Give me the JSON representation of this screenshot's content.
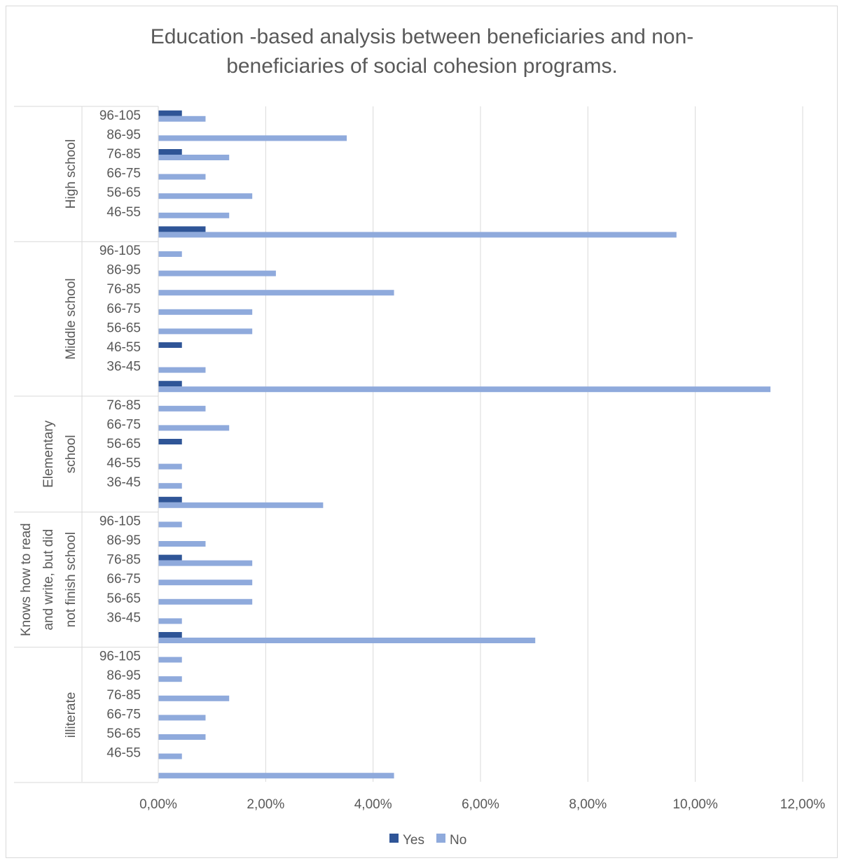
{
  "chart_data": {
    "type": "bar",
    "orientation": "horizontal",
    "title_lines": [
      "Education -based analysis between beneficiaries and non-",
      "beneficiaries of social cohesion programs."
    ],
    "xlim": [
      0,
      12
    ],
    "x_tick_labels": [
      "0,00%",
      "2,00%",
      "4,00%",
      "6,00%",
      "8,00%",
      "10,00%",
      "12,00%"
    ],
    "legend_position": "bottom",
    "colors": {
      "Yes": "#2f5597",
      "No": "#8faadc"
    },
    "series": [
      {
        "name": "Yes"
      },
      {
        "name": "No"
      }
    ],
    "groups": [
      {
        "label_lines": [
          "High school"
        ],
        "rows": [
          {
            "label": "96-105",
            "Yes": 0.44,
            "No": 0.88
          },
          {
            "label": "86-95",
            "Yes": 0,
            "No": 3.51
          },
          {
            "label": "76-85",
            "Yes": 0.44,
            "No": 1.32
          },
          {
            "label": "66-75",
            "Yes": 0,
            "No": 0.88
          },
          {
            "label": "56-65",
            "Yes": 0,
            "No": 1.75
          },
          {
            "label": "46-55",
            "Yes": 0,
            "No": 1.32
          },
          {
            "label": "",
            "Yes": 0.88,
            "No": 9.65
          }
        ]
      },
      {
        "label_lines": [
          "Middle school"
        ],
        "rows": [
          {
            "label": "96-105",
            "Yes": 0,
            "No": 0.44
          },
          {
            "label": "86-95",
            "Yes": 0,
            "No": 2.19
          },
          {
            "label": "76-85",
            "Yes": 0,
            "No": 4.39
          },
          {
            "label": "66-75",
            "Yes": 0,
            "No": 1.75
          },
          {
            "label": "56-65",
            "Yes": 0,
            "No": 1.75
          },
          {
            "label": "46-55",
            "Yes": 0.44,
            "No": 0
          },
          {
            "label": "36-45",
            "Yes": 0,
            "No": 0.88
          },
          {
            "label": "",
            "Yes": 0.44,
            "No": 11.4
          }
        ]
      },
      {
        "label_lines": [
          "Elementary",
          "school"
        ],
        "rows": [
          {
            "label": "76-85",
            "Yes": 0,
            "No": 0.88
          },
          {
            "label": "66-75",
            "Yes": 0,
            "No": 1.32
          },
          {
            "label": "56-65",
            "Yes": 0.44,
            "No": 0
          },
          {
            "label": "46-55",
            "Yes": 0,
            "No": 0.44
          },
          {
            "label": "36-45",
            "Yes": 0,
            "No": 0.44
          },
          {
            "label": "",
            "Yes": 0.44,
            "No": 3.07
          }
        ]
      },
      {
        "label_lines": [
          "Knows how to read",
          "and write, but did",
          "not finish school"
        ],
        "rows": [
          {
            "label": "96-105",
            "Yes": 0,
            "No": 0.44
          },
          {
            "label": "86-95",
            "Yes": 0,
            "No": 0.88
          },
          {
            "label": "76-85",
            "Yes": 0.44,
            "No": 1.75
          },
          {
            "label": "66-75",
            "Yes": 0,
            "No": 1.75
          },
          {
            "label": "56-65",
            "Yes": 0,
            "No": 1.75
          },
          {
            "label": "36-45",
            "Yes": 0,
            "No": 0.44
          },
          {
            "label": "",
            "Yes": 0.44,
            "No": 7.02
          }
        ]
      },
      {
        "label_lines": [
          "illiterate"
        ],
        "rows": [
          {
            "label": "96-105",
            "Yes": 0,
            "No": 0.44
          },
          {
            "label": "86-95",
            "Yes": 0,
            "No": 0.44
          },
          {
            "label": "76-85",
            "Yes": 0,
            "No": 1.32
          },
          {
            "label": "66-75",
            "Yes": 0,
            "No": 0.88
          },
          {
            "label": "56-65",
            "Yes": 0,
            "No": 0.88
          },
          {
            "label": "46-55",
            "Yes": 0,
            "No": 0.44
          },
          {
            "label": "",
            "Yes": 0,
            "No": 4.39
          }
        ]
      }
    ]
  }
}
